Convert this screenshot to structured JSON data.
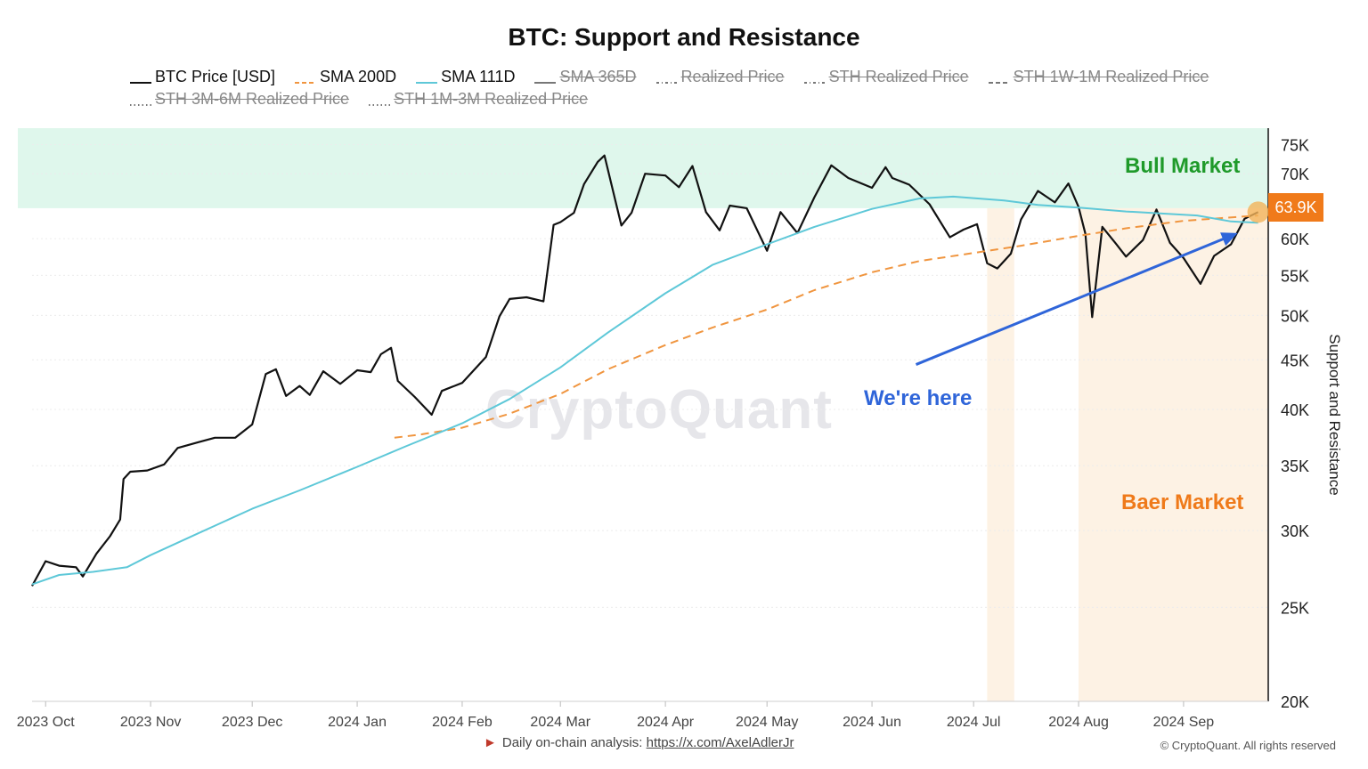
{
  "chart_data": {
    "type": "line",
    "title": "BTC: Support and Resistance",
    "ylabel": "Support and Resistance",
    "yscale": "log",
    "ylim": [
      20000,
      78000
    ],
    "y_ticks": [
      {
        "value": 20000,
        "label": "20K"
      },
      {
        "value": 25000,
        "label": "25K"
      },
      {
        "value": 30000,
        "label": "30K"
      },
      {
        "value": 35000,
        "label": "35K"
      },
      {
        "value": 40000,
        "label": "40K"
      },
      {
        "value": 45000,
        "label": "45K"
      },
      {
        "value": 50000,
        "label": "50K"
      },
      {
        "value": 55000,
        "label": "55K"
      },
      {
        "value": 60000,
        "label": "60K"
      },
      {
        "value": 70000,
        "label": "70K"
      },
      {
        "value": 75000,
        "label": "75K"
      }
    ],
    "xlim": [
      "2023-09-27",
      "2024-09-26"
    ],
    "x_ticks": [
      {
        "date": "2023-10-01",
        "label": "2023 Oct"
      },
      {
        "date": "2023-11-01",
        "label": "2023 Nov"
      },
      {
        "date": "2023-12-01",
        "label": "2023 Dec"
      },
      {
        "date": "2024-01-01",
        "label": "2024 Jan"
      },
      {
        "date": "2024-02-01",
        "label": "2024 Feb"
      },
      {
        "date": "2024-03-01",
        "label": "2024 Mar"
      },
      {
        "date": "2024-04-01",
        "label": "2024 Apr"
      },
      {
        "date": "2024-05-01",
        "label": "2024 May"
      },
      {
        "date": "2024-06-01",
        "label": "2024 Jun"
      },
      {
        "date": "2024-07-01",
        "label": "2024 Jul"
      },
      {
        "date": "2024-08-01",
        "label": "2024 Aug"
      },
      {
        "date": "2024-09-01",
        "label": "2024 Sep"
      }
    ],
    "legend_placement": "top",
    "legend": [
      {
        "label": "BTC Price [USD]",
        "color": "#111111",
        "style": "solid",
        "visible": true
      },
      {
        "label": "SMA 200D",
        "color": "#f0953f",
        "style": "dashed",
        "visible": true
      },
      {
        "label": "SMA 111D",
        "color": "#5ec8d8",
        "style": "solid",
        "visible": true
      },
      {
        "label": "SMA 365D",
        "color": "#777777",
        "style": "solid",
        "visible": false
      },
      {
        "label": "Realized Price",
        "color": "#777777",
        "style": "dashdot",
        "visible": false
      },
      {
        "label": "STH Realized Price",
        "color": "#777777",
        "style": "dashdot",
        "visible": false
      },
      {
        "label": "STH 1W-1M Realized Price",
        "color": "#777777",
        "style": "dashed",
        "visible": false
      },
      {
        "label": "STH 3M-6M Realized Price",
        "color": "#777777",
        "style": "dotted",
        "visible": false
      },
      {
        "label": "STH 1M-3M Realized Price",
        "color": "#777777",
        "style": "dotted",
        "visible": false
      }
    ],
    "series": [
      {
        "name": "BTC Price [USD]",
        "color": "#111111",
        "style": "solid",
        "points": [
          [
            "2023-09-27",
            26300
          ],
          [
            "2023-10-01",
            27900
          ],
          [
            "2023-10-05",
            27600
          ],
          [
            "2023-10-10",
            27500
          ],
          [
            "2023-10-12",
            26900
          ],
          [
            "2023-10-16",
            28400
          ],
          [
            "2023-10-20",
            29600
          ],
          [
            "2023-10-23",
            30800
          ],
          [
            "2023-10-24",
            33900
          ],
          [
            "2023-10-26",
            34500
          ],
          [
            "2023-10-31",
            34600
          ],
          [
            "2023-11-05",
            35100
          ],
          [
            "2023-11-09",
            36500
          ],
          [
            "2023-11-15",
            37000
          ],
          [
            "2023-11-20",
            37400
          ],
          [
            "2023-11-26",
            37400
          ],
          [
            "2023-12-01",
            38600
          ],
          [
            "2023-12-05",
            43500
          ],
          [
            "2023-12-08",
            44000
          ],
          [
            "2023-12-11",
            41300
          ],
          [
            "2023-12-15",
            42300
          ],
          [
            "2023-12-18",
            41400
          ],
          [
            "2023-12-22",
            43800
          ],
          [
            "2023-12-27",
            42500
          ],
          [
            "2024-01-01",
            43900
          ],
          [
            "2024-01-05",
            43700
          ],
          [
            "2024-01-08",
            45600
          ],
          [
            "2024-01-11",
            46300
          ],
          [
            "2024-01-13",
            42800
          ],
          [
            "2024-01-18",
            41200
          ],
          [
            "2024-01-23",
            39500
          ],
          [
            "2024-01-26",
            41800
          ],
          [
            "2024-02-01",
            42600
          ],
          [
            "2024-02-08",
            45300
          ],
          [
            "2024-02-12",
            49900
          ],
          [
            "2024-02-15",
            52000
          ],
          [
            "2024-02-20",
            52200
          ],
          [
            "2024-02-25",
            51700
          ],
          [
            "2024-02-28",
            62000
          ],
          [
            "2024-03-01",
            62400
          ],
          [
            "2024-03-05",
            63800
          ],
          [
            "2024-03-08",
            68300
          ],
          [
            "2024-03-12",
            72000
          ],
          [
            "2024-03-14",
            73100
          ],
          [
            "2024-03-19",
            61900
          ],
          [
            "2024-03-22",
            63800
          ],
          [
            "2024-03-26",
            70000
          ],
          [
            "2024-04-01",
            69700
          ],
          [
            "2024-04-05",
            67800
          ],
          [
            "2024-04-09",
            71300
          ],
          [
            "2024-04-13",
            63900
          ],
          [
            "2024-04-17",
            61200
          ],
          [
            "2024-04-20",
            64900
          ],
          [
            "2024-04-25",
            64500
          ],
          [
            "2024-05-01",
            58300
          ],
          [
            "2024-05-05",
            63900
          ],
          [
            "2024-05-10",
            60800
          ],
          [
            "2024-05-15",
            66200
          ],
          [
            "2024-05-20",
            71400
          ],
          [
            "2024-05-25",
            69300
          ],
          [
            "2024-06-01",
            67700
          ],
          [
            "2024-06-05",
            71100
          ],
          [
            "2024-06-07",
            69300
          ],
          [
            "2024-06-12",
            68200
          ],
          [
            "2024-06-18",
            65100
          ],
          [
            "2024-06-24",
            60200
          ],
          [
            "2024-06-28",
            61300
          ],
          [
            "2024-07-02",
            62100
          ],
          [
            "2024-07-05",
            56600
          ],
          [
            "2024-07-08",
            55900
          ],
          [
            "2024-07-12",
            57900
          ],
          [
            "2024-07-15",
            62800
          ],
          [
            "2024-07-20",
            67200
          ],
          [
            "2024-07-25",
            65400
          ],
          [
            "2024-07-29",
            68400
          ],
          [
            "2024-08-01",
            64700
          ],
          [
            "2024-08-03",
            60700
          ],
          [
            "2024-08-05",
            49800
          ],
          [
            "2024-08-08",
            61700
          ],
          [
            "2024-08-12",
            59300
          ],
          [
            "2024-08-15",
            57500
          ],
          [
            "2024-08-20",
            59800
          ],
          [
            "2024-08-24",
            64300
          ],
          [
            "2024-08-28",
            59400
          ],
          [
            "2024-09-01",
            57300
          ],
          [
            "2024-09-06",
            53900
          ],
          [
            "2024-09-10",
            57600
          ],
          [
            "2024-09-15",
            59200
          ],
          [
            "2024-09-19",
            62900
          ],
          [
            "2024-09-23",
            63900
          ]
        ]
      },
      {
        "name": "SMA 200D",
        "color": "#f0953f",
        "style": "dashed",
        "points": [
          [
            "2024-01-12",
            37400
          ],
          [
            "2024-01-20",
            37700
          ],
          [
            "2024-02-01",
            38300
          ],
          [
            "2024-02-15",
            39600
          ],
          [
            "2024-03-01",
            41500
          ],
          [
            "2024-03-15",
            44000
          ],
          [
            "2024-04-01",
            46600
          ],
          [
            "2024-04-15",
            48600
          ],
          [
            "2024-05-01",
            50700
          ],
          [
            "2024-05-15",
            53100
          ],
          [
            "2024-06-01",
            55400
          ],
          [
            "2024-06-15",
            56900
          ],
          [
            "2024-07-01",
            58000
          ],
          [
            "2024-07-15",
            59000
          ],
          [
            "2024-08-01",
            60400
          ],
          [
            "2024-08-15",
            61500
          ],
          [
            "2024-09-01",
            62600
          ],
          [
            "2024-09-23",
            63400
          ]
        ]
      },
      {
        "name": "SMA 111D",
        "color": "#5ec8d8",
        "style": "solid",
        "points": [
          [
            "2023-09-27",
            26400
          ],
          [
            "2023-10-05",
            27000
          ],
          [
            "2023-10-15",
            27200
          ],
          [
            "2023-10-25",
            27500
          ],
          [
            "2023-11-01",
            28300
          ],
          [
            "2023-11-15",
            29800
          ],
          [
            "2023-12-01",
            31600
          ],
          [
            "2023-12-15",
            33000
          ],
          [
            "2024-01-01",
            34900
          ],
          [
            "2024-01-15",
            36600
          ],
          [
            "2024-02-01",
            38700
          ],
          [
            "2024-02-15",
            41000
          ],
          [
            "2024-03-01",
            44200
          ],
          [
            "2024-03-15",
            48000
          ],
          [
            "2024-04-01",
            52700
          ],
          [
            "2024-04-15",
            56400
          ],
          [
            "2024-05-01",
            59200
          ],
          [
            "2024-05-15",
            61700
          ],
          [
            "2024-06-01",
            64400
          ],
          [
            "2024-06-15",
            66000
          ],
          [
            "2024-06-25",
            66300
          ],
          [
            "2024-07-10",
            65700
          ],
          [
            "2024-07-20",
            65000
          ],
          [
            "2024-08-01",
            64600
          ],
          [
            "2024-08-15",
            64000
          ],
          [
            "2024-08-25",
            63700
          ],
          [
            "2024-09-05",
            63400
          ],
          [
            "2024-09-15",
            62500
          ],
          [
            "2024-09-23",
            62300
          ]
        ]
      }
    ],
    "zones": [
      {
        "label": "Bull Market",
        "color": "#dff7ec",
        "y_from": 64500,
        "y_to": 78000
      },
      {
        "label": "Baer Market",
        "color": "#fdf2e4",
        "bands": [
          [
            "2024-07-05",
            "2024-07-13"
          ],
          [
            "2024-08-01",
            "2024-09-26"
          ]
        ]
      }
    ],
    "annotations": [
      {
        "text": "Bull Market",
        "color": "#1f9a2a"
      },
      {
        "text": "Baer Market",
        "color": "#ef7a1a"
      },
      {
        "text": "We're here",
        "color": "#2f65d9",
        "arrow_from": [
          "2024-06-14",
          44500
        ],
        "arrow_to": [
          "2024-09-17",
          60800
        ]
      }
    ],
    "last_value": {
      "label": "63.9K",
      "value": 63900,
      "color": "#f07a1a"
    },
    "watermark": "CryptoQuant",
    "grid": true
  },
  "footer": {
    "flag": "►",
    "text": "Daily on-chain analysis:",
    "link_text": "https://x.com/AxelAdlerJr",
    "copyright": "© CryptoQuant. All rights reserved"
  }
}
